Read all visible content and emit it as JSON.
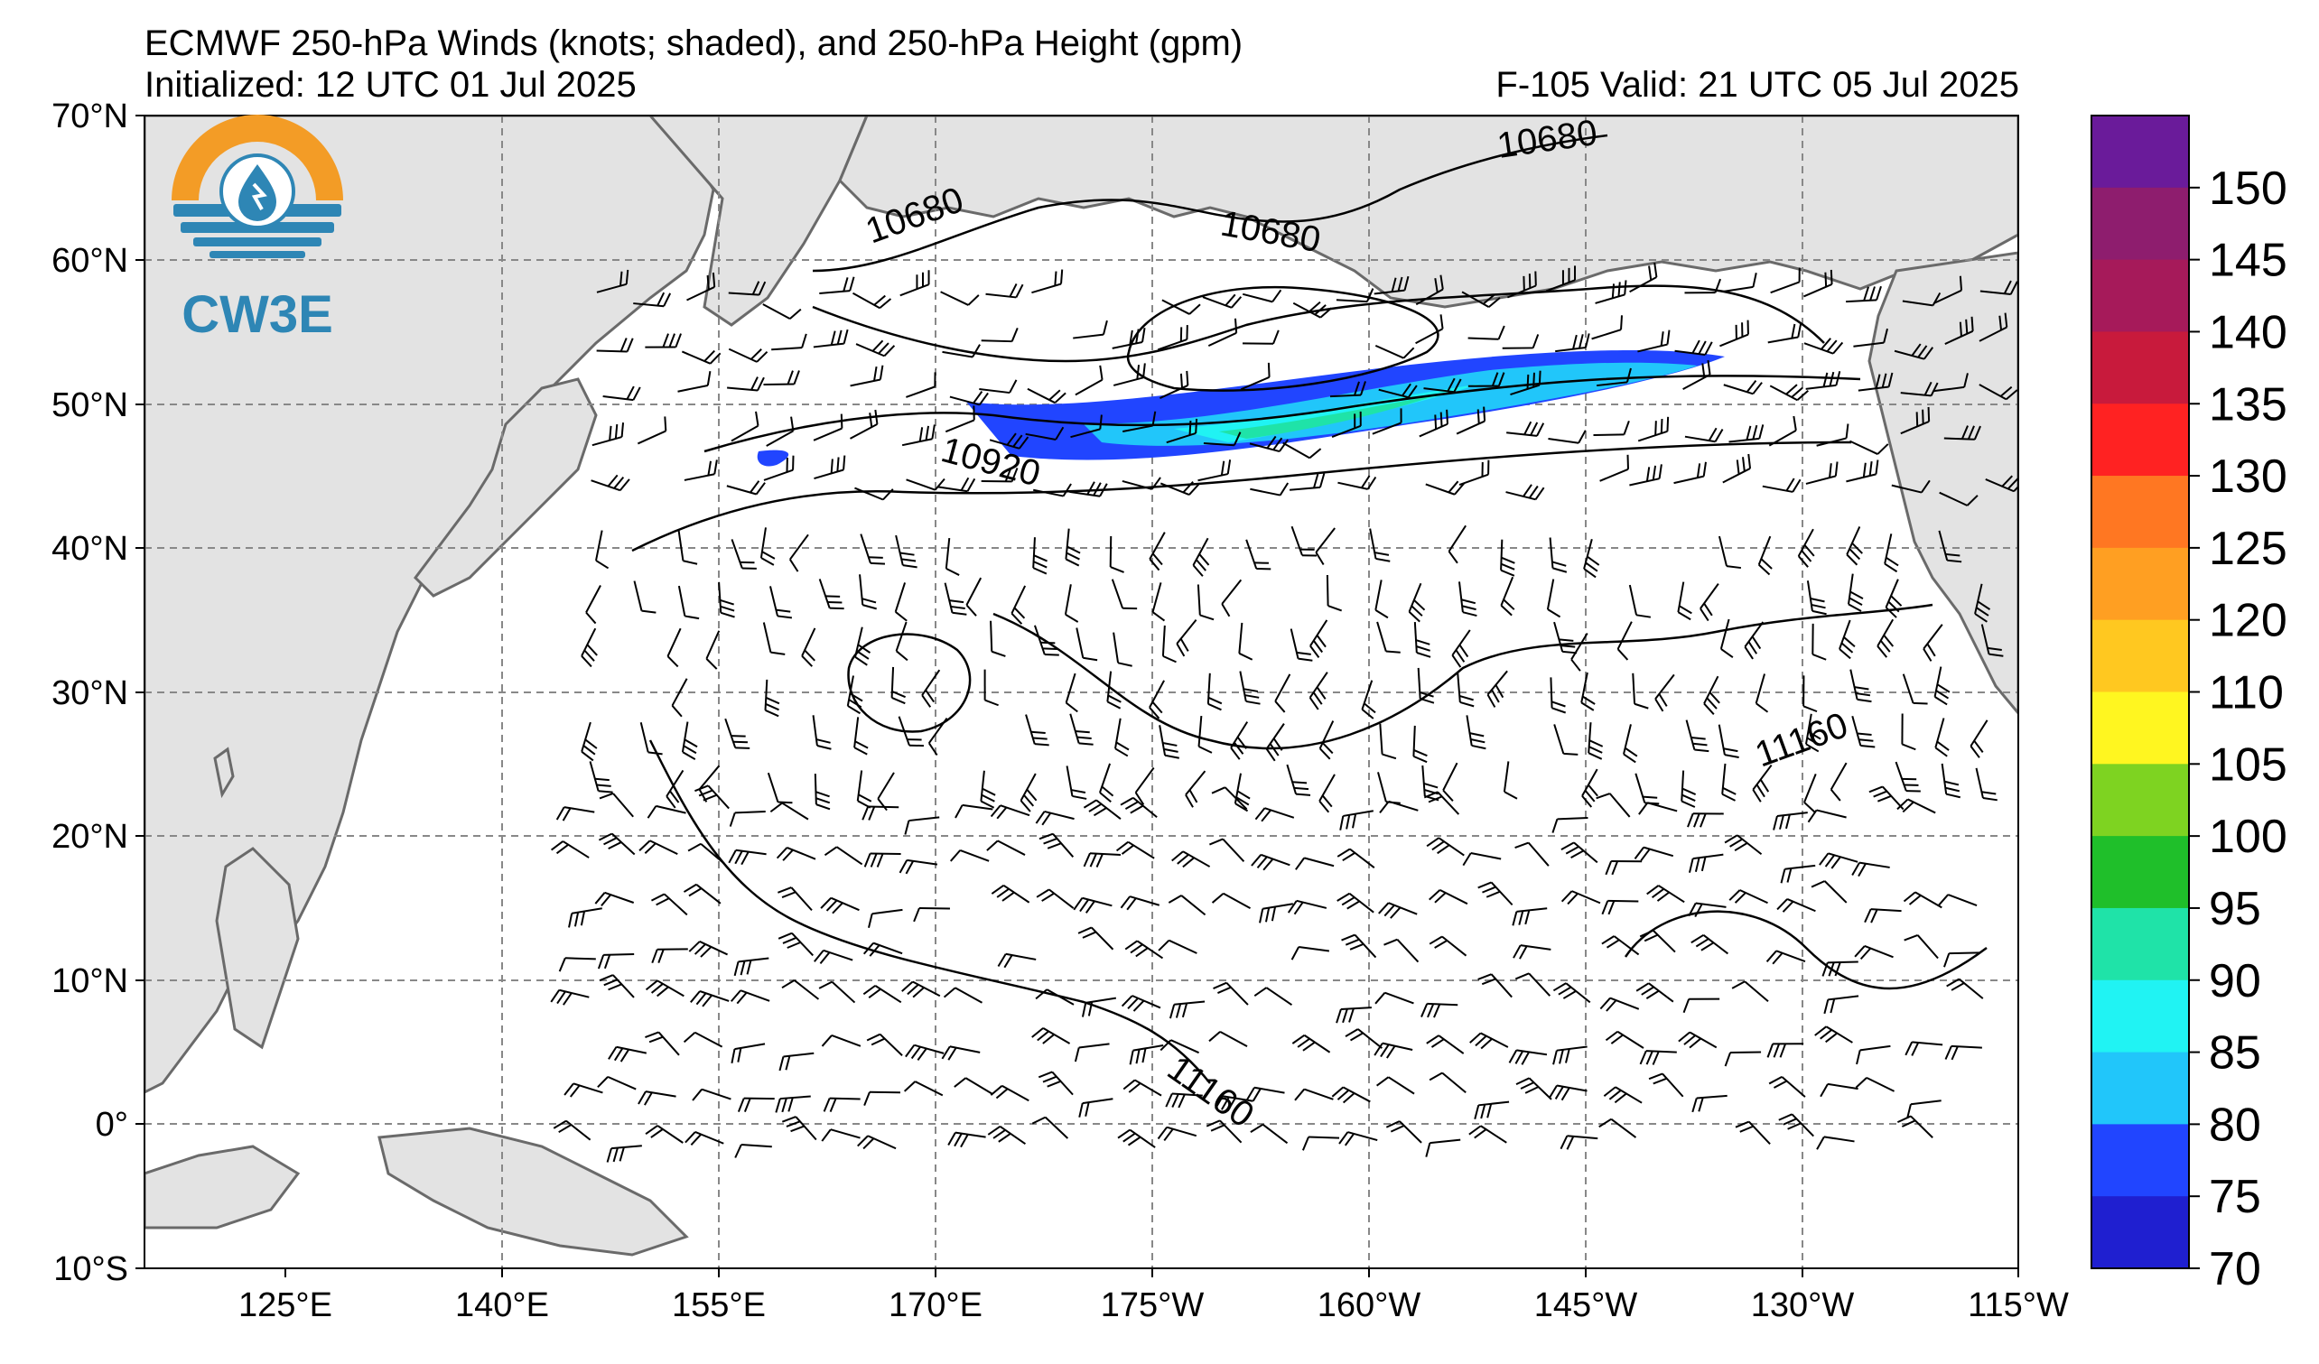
{
  "title": {
    "line1": "ECMWF 250-hPa Winds (knots; shaded), and 250-hPa Height (gpm)",
    "initialized": "Initialized: 12 UTC 01 Jul 2025",
    "valid": "F-105  Valid: 21 UTC 05 Jul 2025"
  },
  "logo": {
    "text": "CW3E",
    "icon": "water-drop-sun-icon",
    "colors": {
      "sun": "#f39c26",
      "waves": "#2e86b5"
    }
  },
  "axes": {
    "lat_labels": [
      "70°N",
      "60°N",
      "50°N",
      "40°N",
      "30°N",
      "20°N",
      "10°N",
      "0°",
      "10°S"
    ],
    "lon_labels": [
      "125°E",
      "140°E",
      "155°E",
      "170°E",
      "175°W",
      "160°W",
      "145°W",
      "130°W",
      "115°W"
    ]
  },
  "colorbar": {
    "labels": [
      "150",
      "145",
      "140",
      "135",
      "130",
      "125",
      "120",
      "110",
      "105",
      "100",
      "95",
      "90",
      "85",
      "80",
      "75",
      "70"
    ],
    "colors": [
      "#6a1b9a",
      "#8e1d6e",
      "#a61a5a",
      "#c81a3c",
      "#ff2222",
      "#ff7722",
      "#ff9f22",
      "#ffc820",
      "#fff620",
      "#7ed321",
      "#1fbf2a",
      "#1fe3a8",
      "#20f3f3",
      "#21c6fa",
      "#2145ff",
      "#1f1fd0"
    ]
  },
  "contour_labels": [
    "10680",
    "10680",
    "10680",
    "10920",
    "11160",
    "11160"
  ],
  "colors": {
    "land": "#e3e3e3",
    "coast": "#6a6a6a",
    "grid": "#888888",
    "contour": "#000000"
  }
}
